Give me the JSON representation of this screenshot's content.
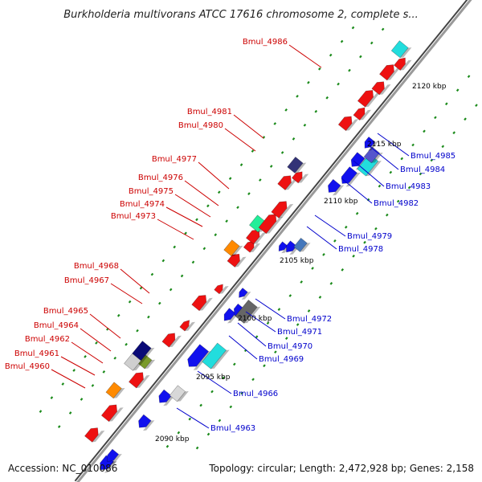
{
  "title": "Burkholderia multivorans ATCC 17616 chromosome 2, complete s...",
  "footer": {
    "accession": "Accession: NC_010086",
    "topology": "Topology: circular; Length: 2,472,928 bp; Genes: 2,158"
  },
  "colors": {
    "backbone": "#7a7a7a",
    "forward_label": "#cc0000",
    "reverse_label": "#0000cc",
    "forward_gene": "#ee0000",
    "reverse_gene": "#0000ee",
    "tick": "#1a8a1a"
  },
  "kbp_labels": [
    "2090 kbp",
    "2095 kbp",
    "2100 kbp",
    "2105 kbp",
    "2110 kbp",
    "2115 kbp",
    "2120 kbp"
  ],
  "forward_genes": [
    "Bmul_4986",
    "Bmul_4981",
    "Bmul_4980",
    "Bmul_4977",
    "Bmul_4976",
    "Bmul_4975",
    "Bmul_4974",
    "Bmul_4973",
    "Bmul_4968",
    "Bmul_4967",
    "Bmul_4965",
    "Bmul_4964",
    "Bmul_4962",
    "Bmul_4961",
    "Bmul_4960"
  ],
  "reverse_genes": [
    "Bmul_4985",
    "Bmul_4984",
    "Bmul_4983",
    "Bmul_4982",
    "Bmul_4979",
    "Bmul_4978",
    "Bmul_4972",
    "Bmul_4971",
    "Bmul_4970",
    "Bmul_4969",
    "Bmul_4966",
    "Bmul_4963"
  ]
}
